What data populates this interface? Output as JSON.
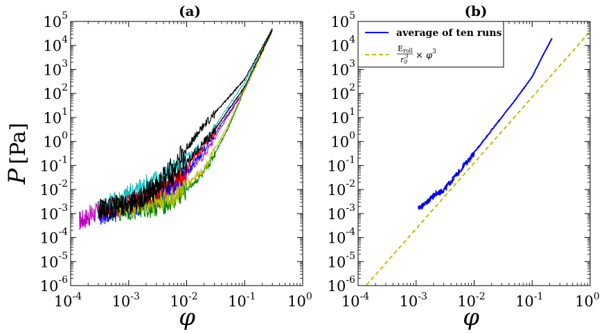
{
  "chart_data": [
    {
      "type": "line",
      "panel_label": "(a)",
      "xlabel": "φ",
      "ylabel_italic": "P",
      "ylabel_unit": "[Pa]",
      "xscale": "log",
      "yscale": "log",
      "xlim": [
        0.0001,
        1
      ],
      "ylim": [
        1e-06,
        100000
      ],
      "x_tick_labels": [
        {
          "base": "10",
          "exp": "-4"
        },
        {
          "base": "10",
          "exp": "-3"
        },
        {
          "base": "10",
          "exp": "-2"
        },
        {
          "base": "10",
          "exp": "-1"
        },
        {
          "base": "10",
          "exp": "0"
        }
      ],
      "y_tick_labels": [
        {
          "base": "10",
          "exp": "-6"
        },
        {
          "base": "10",
          "exp": "-5"
        },
        {
          "base": "10",
          "exp": "-4"
        },
        {
          "base": "10",
          "exp": "-3"
        },
        {
          "base": "10",
          "exp": "-2"
        },
        {
          "base": "10",
          "exp": "-1"
        },
        {
          "base": "10",
          "exp": "0"
        },
        {
          "base": "10",
          "exp": "1"
        },
        {
          "base": "10",
          "exp": "2"
        },
        {
          "base": "10",
          "exp": "3"
        },
        {
          "base": "10",
          "exp": "4"
        },
        {
          "base": "10",
          "exp": "5"
        }
      ],
      "series": [
        {
          "color": "#bf00bf",
          "x": [
            0.00014,
            0.0003,
            0.001,
            0.005,
            0.02,
            0.1,
            0.3
          ],
          "y": [
            0.0006,
            0.0015,
            0.003,
            0.01,
            0.3,
            150,
            50000
          ]
        },
        {
          "color": "#00bfbf",
          "x": [
            0.0003,
            0.0008,
            0.002,
            0.006,
            0.02,
            0.1,
            0.3
          ],
          "y": [
            0.002,
            0.006,
            0.02,
            0.08,
            1,
            300,
            50000
          ]
        },
        {
          "color": "#0000ff",
          "x": [
            0.0003,
            0.001,
            0.003,
            0.01,
            0.03,
            0.1,
            0.3
          ],
          "y": [
            0.001,
            0.002,
            0.005,
            0.05,
            2,
            150,
            45000
          ]
        },
        {
          "color": "#ff0000",
          "x": [
            0.0003,
            0.001,
            0.003,
            0.01,
            0.03,
            0.1,
            0.3
          ],
          "y": [
            0.002,
            0.003,
            0.008,
            0.08,
            3,
            180,
            42000
          ]
        },
        {
          "color": "#008000",
          "x": [
            0.0005,
            0.002,
            0.006,
            0.02,
            0.05,
            0.1,
            0.3
          ],
          "y": [
            0.0015,
            0.002,
            0.004,
            0.05,
            3,
            150,
            40000
          ]
        },
        {
          "color": "#bfbf00",
          "x": [
            0.0006,
            0.002,
            0.006,
            0.02,
            0.05,
            0.1,
            0.3
          ],
          "y": [
            0.002,
            0.003,
            0.006,
            0.08,
            4,
            160,
            40000
          ]
        },
        {
          "color": "#000000",
          "x": [
            0.0003,
            0.001,
            0.003,
            0.01,
            0.02,
            0.05,
            0.1,
            0.3
          ],
          "y": [
            0.002,
            0.003,
            0.02,
            0.6,
            5,
            60,
            400,
            50000
          ]
        },
        {
          "color": "#000000",
          "x": [
            0.0003,
            0.001,
            0.003,
            0.01,
            0.03,
            0.1,
            0.3
          ],
          "y": [
            0.0015,
            0.003,
            0.01,
            0.15,
            3,
            200,
            45000
          ]
        }
      ]
    },
    {
      "type": "line",
      "panel_label": "(b)",
      "xlabel": "φ",
      "xscale": "log",
      "yscale": "log",
      "xlim": [
        0.0001,
        1
      ],
      "ylim": [
        1e-06,
        100000
      ],
      "legend_position": "top-left",
      "x_tick_labels": [
        {
          "base": "10",
          "exp": "-4"
        },
        {
          "base": "10",
          "exp": "-3"
        },
        {
          "base": "10",
          "exp": "-2"
        },
        {
          "base": "10",
          "exp": "-1"
        },
        {
          "base": "10",
          "exp": "0"
        }
      ],
      "y_tick_labels": [
        {
          "base": "10",
          "exp": "-6"
        },
        {
          "base": "10",
          "exp": "-5"
        },
        {
          "base": "10",
          "exp": "-4"
        },
        {
          "base": "10",
          "exp": "-3"
        },
        {
          "base": "10",
          "exp": "-2"
        },
        {
          "base": "10",
          "exp": "-1"
        },
        {
          "base": "10",
          "exp": "0"
        },
        {
          "base": "10",
          "exp": "1"
        },
        {
          "base": "10",
          "exp": "2"
        },
        {
          "base": "10",
          "exp": "3"
        },
        {
          "base": "10",
          "exp": "4"
        },
        {
          "base": "10",
          "exp": "5"
        }
      ],
      "series": [
        {
          "name": "average of ten runs",
          "color": "#0000ff",
          "style": "solid",
          "x": [
            0.0011,
            0.0015,
            0.002,
            0.003,
            0.005,
            0.01,
            0.02,
            0.05,
            0.1,
            0.15,
            0.22
          ],
          "y": [
            0.0018,
            0.003,
            0.006,
            0.01,
            0.045,
            0.35,
            3,
            50,
            500,
            3500,
            20000
          ]
        },
        {
          "name_parts": {
            "num": "E",
            "num_sub": "roll",
            "den": "r",
            "den_sub": "0",
            "den_sup": "3",
            "times": "× φ",
            "sup": "3"
          },
          "color": "#bfbf00",
          "style": "dashed",
          "x": [
            0.00014,
            1
          ],
          "y": [
            1.07e-06,
            39000
          ]
        }
      ]
    }
  ],
  "colors": {
    "axes": "#000000",
    "background": "#ffffff"
  }
}
